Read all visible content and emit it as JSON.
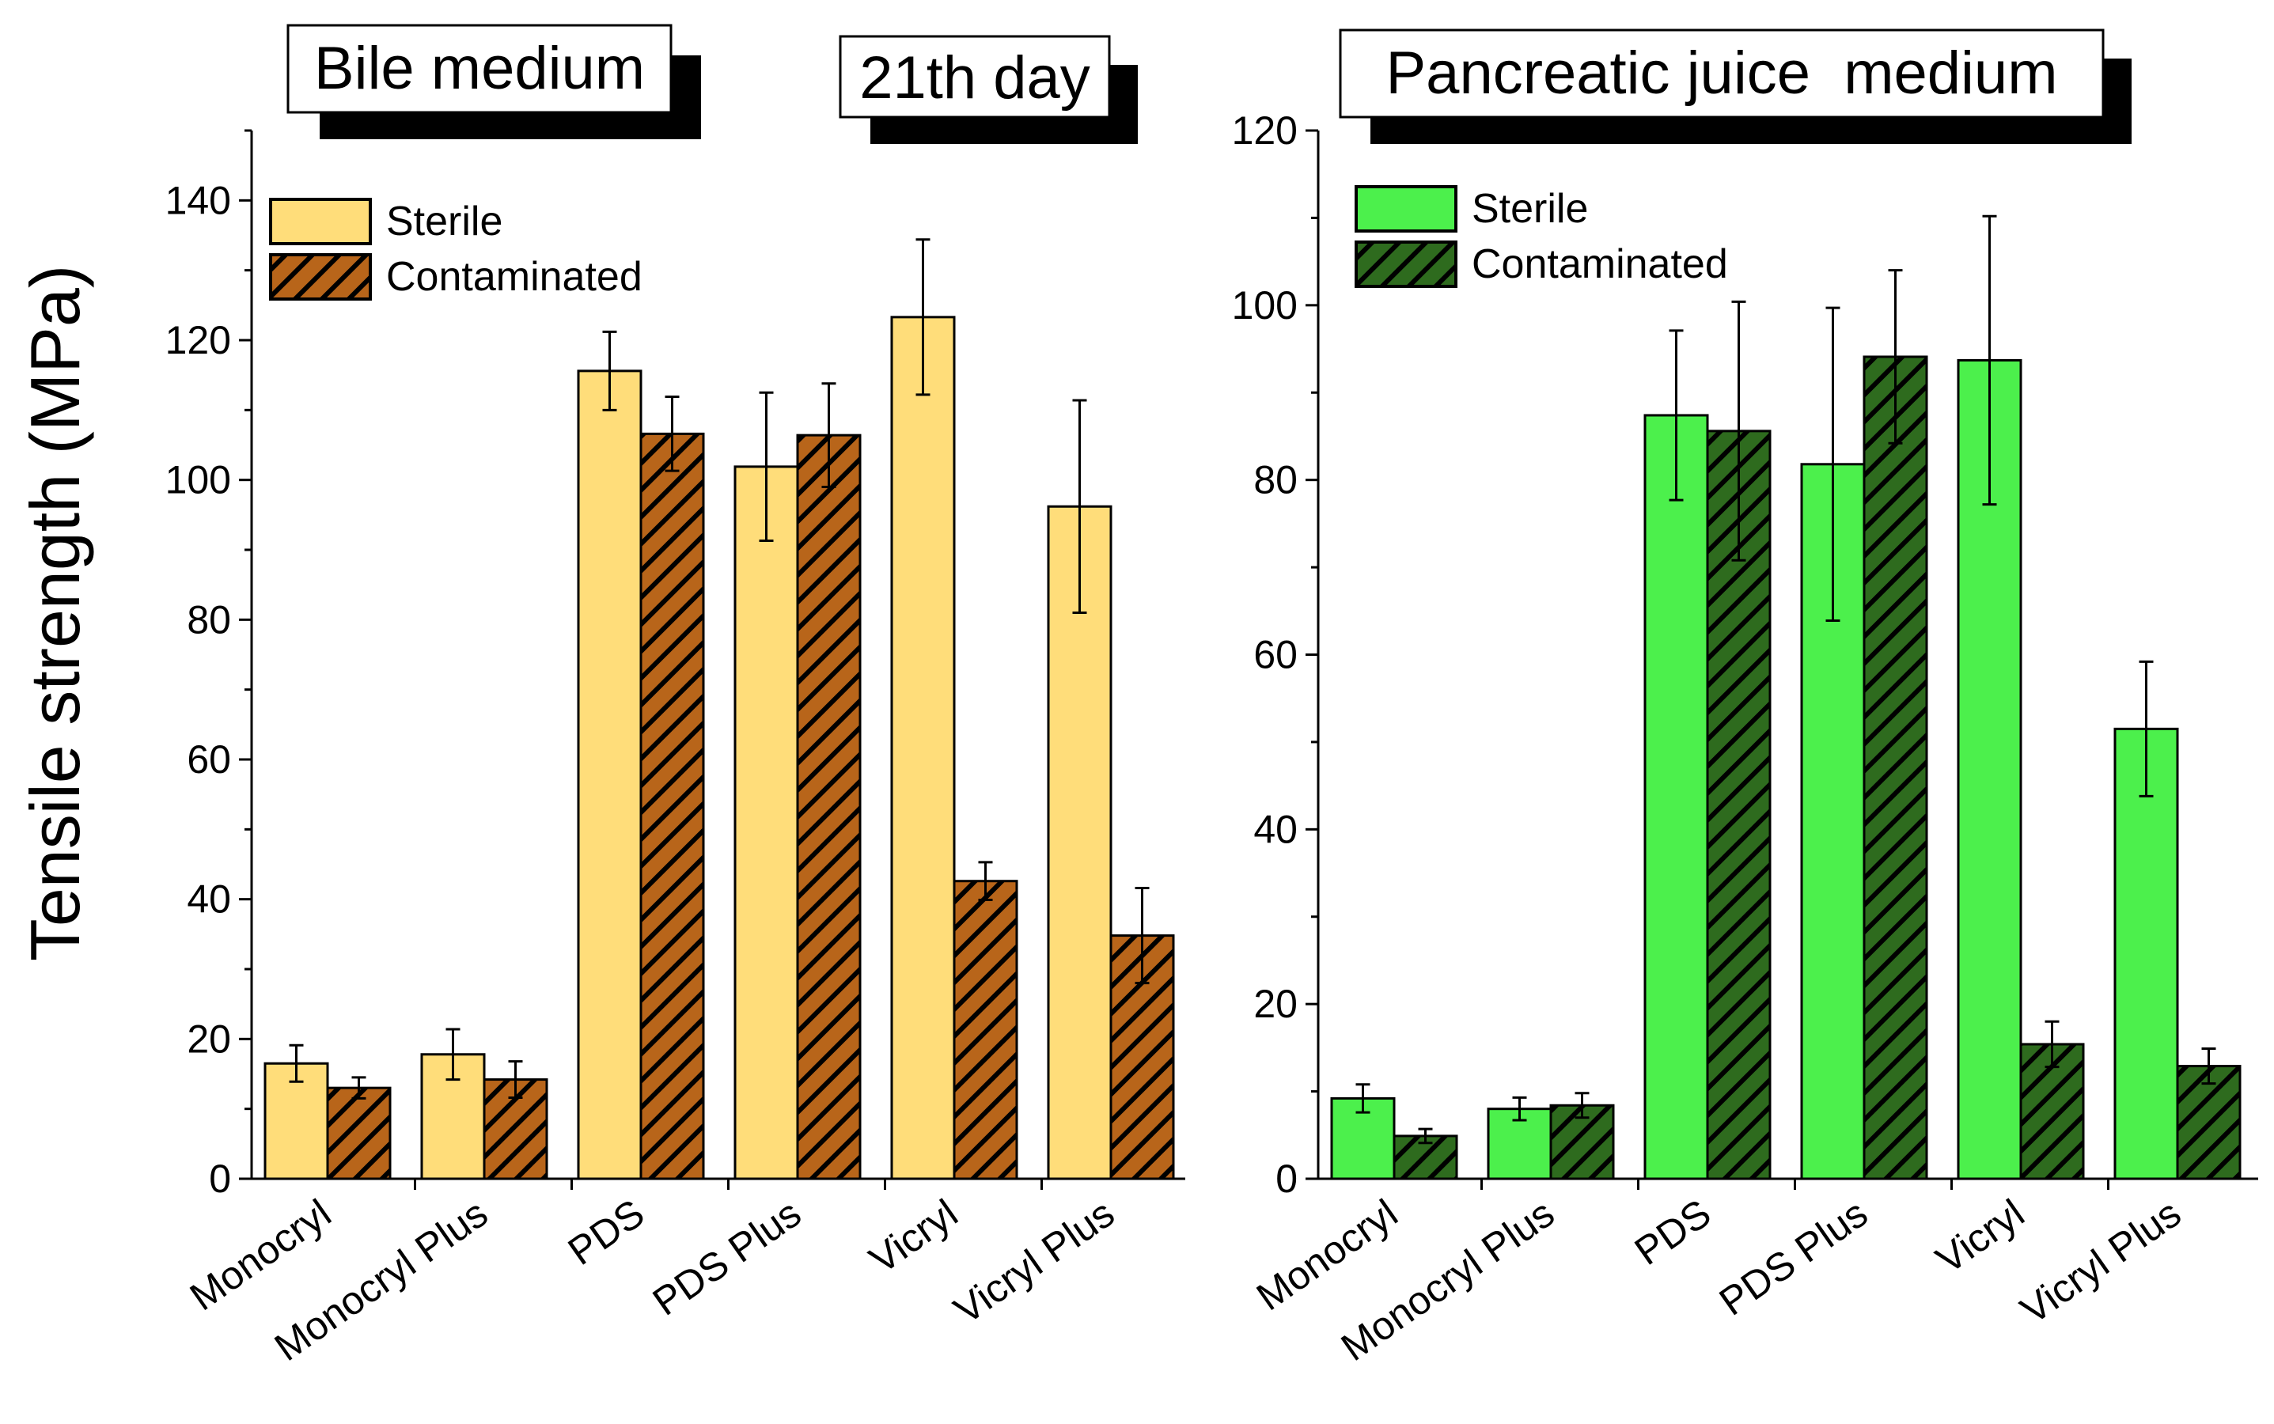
{
  "figure": {
    "day_label": "21th day",
    "ylabel": "Tensile strength (MPa)"
  },
  "chart_data": [
    {
      "type": "bar",
      "title": "Bile medium",
      "xlabel": "",
      "ylabel": "Tensile strength (MPa)",
      "ylim": [
        0,
        150
      ],
      "yticks": [
        0,
        20,
        40,
        60,
        80,
        100,
        120,
        140
      ],
      "categories": [
        "Monocryl",
        "Monocryl Plus",
        "PDS",
        "PDS Plus",
        "Vicryl",
        "Vicryl Plus"
      ],
      "legend_position": "top-left",
      "series": [
        {
          "name": "Sterile",
          "color": "#FFDD7A",
          "pattern": "solid",
          "values": [
            16.5,
            17.8,
            115.6,
            101.9,
            123.3,
            96.2
          ],
          "errors": [
            2.6,
            3.6,
            5.6,
            10.6,
            11.1,
            15.2
          ]
        },
        {
          "name": "Contaminated",
          "color": "#B8651A",
          "pattern": "hatched",
          "values": [
            13.0,
            14.2,
            106.6,
            106.4,
            42.6,
            34.8
          ],
          "errors": [
            1.5,
            2.6,
            5.3,
            7.4,
            2.7,
            6.8
          ]
        }
      ]
    },
    {
      "type": "bar",
      "title": "Pancreatic juice  medium",
      "xlabel": "",
      "ylabel": "",
      "ylim": [
        0,
        120
      ],
      "yticks": [
        0,
        20,
        40,
        60,
        80,
        100,
        120
      ],
      "categories": [
        "Monocryl",
        "Monocryl Plus",
        "PDS",
        "PDS Plus",
        "Vicryl",
        "Vicryl Plus"
      ],
      "legend_position": "top-left",
      "series": [
        {
          "name": "Sterile",
          "color": "#4CF04C",
          "pattern": "solid",
          "values": [
            9.2,
            8.0,
            87.4,
            81.8,
            93.7,
            51.5
          ],
          "errors": [
            1.6,
            1.3,
            9.7,
            17.9,
            16.5,
            7.7
          ]
        },
        {
          "name": "Contaminated",
          "color": "#2E6B1E",
          "pattern": "hatched",
          "values": [
            4.9,
            8.4,
            85.6,
            94.1,
            15.4,
            12.9
          ],
          "errors": [
            0.8,
            1.4,
            14.8,
            9.9,
            2.6,
            2.0
          ]
        }
      ]
    }
  ]
}
